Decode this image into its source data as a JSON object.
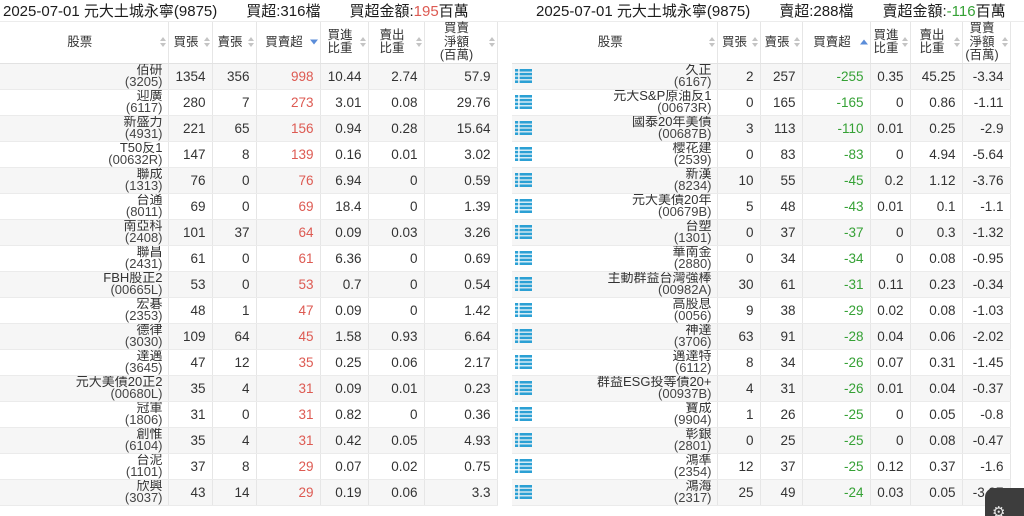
{
  "columns": [
    "股票",
    "買張",
    "賣張",
    "買賣超",
    "買進\n比重",
    "賣出\n比重",
    "買賣\n淨額\n(百萬)"
  ],
  "column_names": [
    "stock",
    "buy-lots",
    "sell-lots",
    "buy-sell-net",
    "buy-ratio",
    "sell-ratio",
    "net-amount"
  ],
  "colors": {
    "up_red": "#dd5a52",
    "down_green": "#35a135",
    "icon_blue": "#2ba0d4",
    "sort_active_blue": "#5b8dd9"
  },
  "panels": [
    {
      "title": "2025-07-01 元大土城永寧(9875)",
      "count": "買超:316檔",
      "amount_label": "買超金額:",
      "amount_value": "195",
      "amount_unit": "百萬",
      "sort_column_index": 3,
      "sort_dir": "desc",
      "rows_have_icon": false,
      "rows": [
        [
          "佰研",
          "(3205)",
          "1354",
          "356",
          "998",
          "10.44",
          "2.74",
          "57.9"
        ],
        [
          "迎廣",
          "(6117)",
          "280",
          "7",
          "273",
          "3.01",
          "0.08",
          "29.76"
        ],
        [
          "新盛力",
          "(4931)",
          "221",
          "65",
          "156",
          "0.94",
          "0.28",
          "15.64"
        ],
        [
          "T50反1",
          "(00632R)",
          "147",
          "8",
          "139",
          "0.16",
          "0.01",
          "3.02"
        ],
        [
          "聯成",
          "(1313)",
          "76",
          "0",
          "76",
          "6.94",
          "0",
          "0.59"
        ],
        [
          "台通",
          "(8011)",
          "69",
          "0",
          "69",
          "18.4",
          "0",
          "1.39"
        ],
        [
          "南亞科",
          "(2408)",
          "101",
          "37",
          "64",
          "0.09",
          "0.03",
          "3.26"
        ],
        [
          "聯昌",
          "(2431)",
          "61",
          "0",
          "61",
          "6.36",
          "0",
          "0.69"
        ],
        [
          "FBH股正2",
          "(00665L)",
          "53",
          "0",
          "53",
          "0.7",
          "0",
          "0.54"
        ],
        [
          "宏碁",
          "(2353)",
          "48",
          "1",
          "47",
          "0.09",
          "0",
          "1.42"
        ],
        [
          "德律",
          "(3030)",
          "109",
          "64",
          "45",
          "1.58",
          "0.93",
          "6.64"
        ],
        [
          "達邁",
          "(3645)",
          "47",
          "12",
          "35",
          "0.25",
          "0.06",
          "2.17"
        ],
        [
          "元大美債20正2",
          "(00680L)",
          "35",
          "4",
          "31",
          "0.09",
          "0.01",
          "0.23"
        ],
        [
          "冠軍",
          "(1806)",
          "31",
          "0",
          "31",
          "0.82",
          "0",
          "0.36"
        ],
        [
          "創惟",
          "(6104)",
          "35",
          "4",
          "31",
          "0.42",
          "0.05",
          "4.93"
        ],
        [
          "台泥",
          "(1101)",
          "37",
          "8",
          "29",
          "0.07",
          "0.02",
          "0.75"
        ],
        [
          "欣興",
          "(3037)",
          "43",
          "14",
          "29",
          "0.19",
          "0.06",
          "3.3"
        ]
      ]
    },
    {
      "title": "2025-07-01 元大土城永寧(9875)",
      "count": "賣超:288檔",
      "amount_label": "賣超金額:",
      "amount_value": "-116",
      "amount_unit": "百萬",
      "sort_column_index": 3,
      "sort_dir": "asc",
      "rows_have_icon": true,
      "rows": [
        [
          "久正",
          "(6167)",
          "2",
          "257",
          "-255",
          "0.35",
          "45.25",
          "-3.34"
        ],
        [
          "元大S&P原油反1",
          "(00673R)",
          "0",
          "165",
          "-165",
          "0",
          "0.86",
          "-1.11"
        ],
        [
          "國泰20年美債",
          "(00687B)",
          "3",
          "113",
          "-110",
          "0.01",
          "0.25",
          "-2.9"
        ],
        [
          "櫻花建",
          "(2539)",
          "0",
          "83",
          "-83",
          "0",
          "4.94",
          "-5.64"
        ],
        [
          "新漢",
          "(8234)",
          "10",
          "55",
          "-45",
          "0.2",
          "1.12",
          "-3.76"
        ],
        [
          "元大美債20年",
          "(00679B)",
          "5",
          "48",
          "-43",
          "0.01",
          "0.1",
          "-1.1"
        ],
        [
          "台塑",
          "(1301)",
          "0",
          "37",
          "-37",
          "0",
          "0.3",
          "-1.32"
        ],
        [
          "華南金",
          "(2880)",
          "0",
          "34",
          "-34",
          "0",
          "0.08",
          "-0.95"
        ],
        [
          "主動群益台灣強棒",
          "(00982A)",
          "30",
          "61",
          "-31",
          "0.11",
          "0.23",
          "-0.34"
        ],
        [
          "高股息",
          "(0056)",
          "9",
          "38",
          "-29",
          "0.02",
          "0.08",
          "-1.03"
        ],
        [
          "神達",
          "(3706)",
          "63",
          "91",
          "-28",
          "0.04",
          "0.06",
          "-2.02"
        ],
        [
          "邁達特",
          "(6112)",
          "8",
          "34",
          "-26",
          "0.07",
          "0.31",
          "-1.45"
        ],
        [
          "群益ESG投等債20+",
          "(00937B)",
          "4",
          "31",
          "-26",
          "0.01",
          "0.04",
          "-0.37"
        ],
        [
          "寶成",
          "(9904)",
          "1",
          "26",
          "-25",
          "0",
          "0.05",
          "-0.8"
        ],
        [
          "彰銀",
          "(2801)",
          "0",
          "25",
          "-25",
          "0",
          "0.08",
          "-0.47"
        ],
        [
          "鴻準",
          "(2354)",
          "12",
          "37",
          "-25",
          "0.12",
          "0.37",
          "-1.6"
        ],
        [
          "鴻海",
          "(2317)",
          "25",
          "49",
          "-24",
          "0.03",
          "0.05",
          "-3.97"
        ]
      ]
    }
  ]
}
